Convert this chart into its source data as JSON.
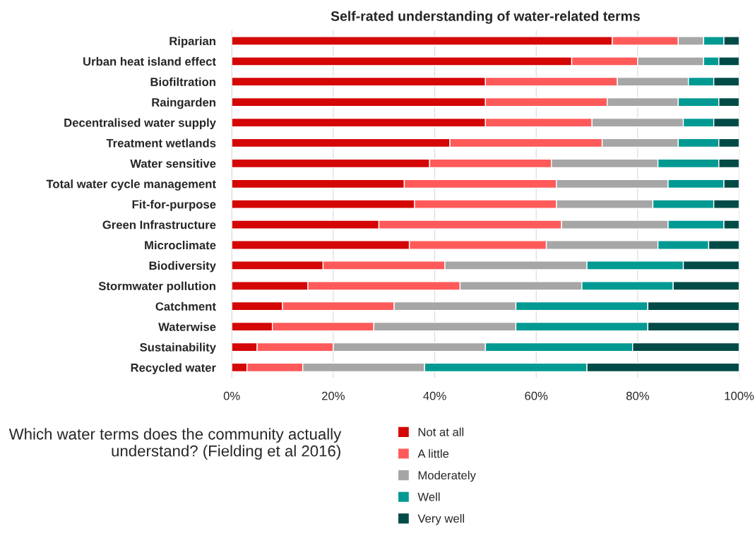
{
  "chart_data": {
    "type": "bar",
    "orientation": "horizontal",
    "stacked": true,
    "title": "Self-rated understanding of water-related terms",
    "categories": [
      "Riparian",
      "Urban heat island effect",
      "Biofiltration",
      "Raingarden",
      "Decentralised water supply",
      "Treatment wetlands",
      "Water sensitive",
      "Total water cycle management",
      "Fit-for-purpose",
      "Green Infrastructure",
      "Microclimate",
      "Biodiversity",
      "Stormwater pollution",
      "Catchment",
      "Waterwise",
      "Sustainability",
      "Recycled water"
    ],
    "series": [
      {
        "name": "Not at all",
        "color": "#d40606",
        "values": [
          75,
          67,
          50,
          50,
          50,
          43,
          39,
          34,
          36,
          29,
          35,
          18,
          15,
          10,
          8,
          5,
          3
        ]
      },
      {
        "name": "A little",
        "color": "#ff5a5a",
        "values": [
          13,
          13,
          26,
          24,
          21,
          30,
          24,
          30,
          28,
          36,
          27,
          24,
          30,
          22,
          20,
          15,
          11
        ]
      },
      {
        "name": "Moderately",
        "color": "#a6a6a6",
        "values": [
          5,
          13,
          14,
          14,
          18,
          15,
          21,
          22,
          19,
          21,
          22,
          28,
          24,
          24,
          28,
          30,
          24
        ]
      },
      {
        "name": "Well",
        "color": "#009a92",
        "values": [
          4,
          3,
          5,
          8,
          6,
          8,
          12,
          11,
          12,
          11,
          10,
          19,
          18,
          26,
          26,
          29,
          32
        ]
      },
      {
        "name": "Very well",
        "color": "#004b47",
        "values": [
          3,
          4,
          5,
          4,
          5,
          4,
          4,
          3,
          5,
          3,
          6,
          11,
          13,
          18,
          18,
          21,
          30
        ]
      }
    ],
    "xlim": [
      0,
      100
    ],
    "xticks": [
      {
        "value": 0,
        "label": "0%"
      },
      {
        "value": 20,
        "label": "20%"
      },
      {
        "value": 40,
        "label": "40%"
      },
      {
        "value": 60,
        "label": "60%"
      },
      {
        "value": 80,
        "label": "80%"
      },
      {
        "value": 100,
        "label": "100%"
      }
    ],
    "grid": "x",
    "legend": "bottom",
    "annotations": [
      "Which water terms does the community actually understand? (Fielding et al 2016)"
    ]
  }
}
